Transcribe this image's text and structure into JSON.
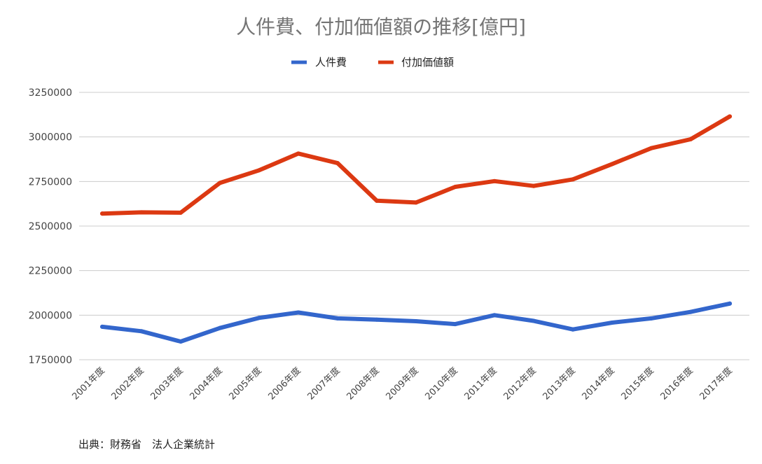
{
  "chart_data": {
    "type": "line",
    "title": "人件費、付加価値額の推移[億円]",
    "categories": [
      "2001年度",
      "2002年度",
      "2003年度",
      "2004年度",
      "2005年度",
      "2006年度",
      "2007年度",
      "2008年度",
      "2009年度",
      "2010年度",
      "2011年度",
      "2012年度",
      "2013年度",
      "2014年度",
      "2015年度",
      "2016年度",
      "2017年度"
    ],
    "series": [
      {
        "name": "人件費",
        "color": "#3366cc",
        "values": [
          1935000,
          1910000,
          1852000,
          1928000,
          1985000,
          2015000,
          1982000,
          1975000,
          1966000,
          1950000,
          2000000,
          1968000,
          1920000,
          1958000,
          1982000,
          2018000,
          2065000
        ]
      },
      {
        "name": "付加価値額",
        "color": "#dc3912",
        "values": [
          2570000,
          2577000,
          2575000,
          2742000,
          2813000,
          2907000,
          2853000,
          2642000,
          2632000,
          2720000,
          2752000,
          2725000,
          2762000,
          2848000,
          2937000,
          2987000,
          3115000
        ]
      }
    ],
    "ylim": [
      1750000,
      3250000
    ],
    "yticks": [
      1750000,
      2000000,
      2250000,
      2500000,
      2750000,
      3000000,
      3250000
    ],
    "grid": true,
    "legend_position": "top",
    "xlabel": "",
    "ylabel": ""
  },
  "source_note": "出典：財務省　法人企業統計"
}
